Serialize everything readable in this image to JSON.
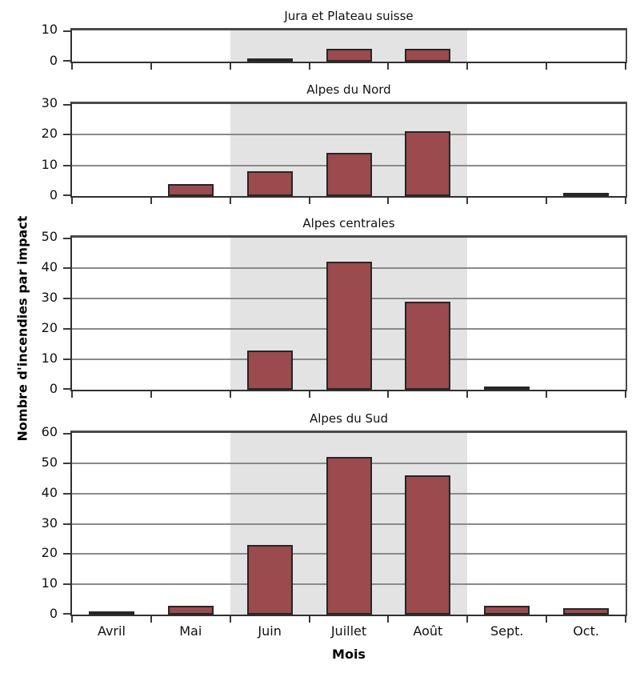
{
  "figure": {
    "ylabel": "Nombre d'incendies par impact",
    "xlabel": "Mois"
  },
  "chart_data": {
    "type": "bar",
    "layout": "4 vertically stacked subplots sharing the month axis",
    "categories": [
      "Avril",
      "Mai",
      "Juin",
      "Juillet",
      "Août",
      "Sept.",
      "Oct."
    ],
    "xlabel": "Mois",
    "ylabel": "Nombre d'incendies par impact",
    "grid": true,
    "legend": "none",
    "highlight_band": {
      "from": "Juin",
      "to": "Août",
      "color": "#e3e3e3"
    },
    "bar_color": "#9b4a4d",
    "bar_edge_color": "#262626",
    "gridline_color": "#8a8a8a",
    "subplots": [
      {
        "title": "Jura et Plateau suisse",
        "values": [
          0,
          0,
          1,
          4,
          4,
          0,
          0
        ],
        "ylim": [
          0,
          10
        ],
        "yticks": [
          0,
          10
        ]
      },
      {
        "title": "Alpes du Nord",
        "values": [
          0,
          4,
          8,
          14,
          21,
          0,
          1
        ],
        "ylim": [
          0,
          30
        ],
        "yticks": [
          0,
          10,
          20,
          30
        ]
      },
      {
        "title": "Alpes centrales",
        "values": [
          0,
          0,
          13,
          42,
          29,
          1,
          0
        ],
        "ylim": [
          0,
          50
        ],
        "yticks": [
          0,
          10,
          20,
          30,
          40,
          50
        ]
      },
      {
        "title": "Alpes du Sud",
        "values": [
          1,
          3,
          23,
          52,
          46,
          3,
          2
        ],
        "ylim": [
          0,
          60
        ],
        "yticks": [
          0,
          10,
          20,
          30,
          40,
          50,
          60
        ]
      }
    ]
  }
}
